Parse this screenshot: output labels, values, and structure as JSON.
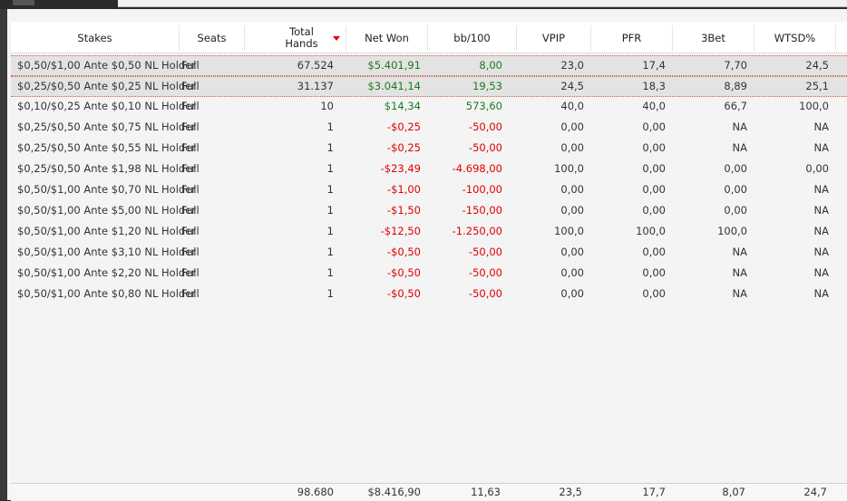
{
  "columns": [
    {
      "key": "stakes",
      "label": "Stakes"
    },
    {
      "key": "seats",
      "label": "Seats"
    },
    {
      "key": "hands",
      "label": "Total Hands",
      "sorted": "desc"
    },
    {
      "key": "net",
      "label": "Net Won"
    },
    {
      "key": "bb100",
      "label": "bb/100"
    },
    {
      "key": "vpip",
      "label": "VPIP"
    },
    {
      "key": "pfr",
      "label": "PFR"
    },
    {
      "key": "threebet",
      "label": "3Bet"
    },
    {
      "key": "wtsd",
      "label": "WTSD%"
    }
  ],
  "rows": [
    {
      "stakes": "$0,50/$1,00 Ante $0,50 NL Holder",
      "seats": "Full",
      "hands": "67.524",
      "net": "$5.401,91",
      "bb100": "8,00",
      "vpip": "23,0",
      "pfr": "17,4",
      "threebet": "7,70",
      "wtsd": "24,5",
      "sign": "pos",
      "selected": true
    },
    {
      "stakes": "$0,25/$0,50 Ante $0,25 NL Holder",
      "seats": "Full",
      "hands": "31.137",
      "net": "$3.041,14",
      "bb100": "19,53",
      "vpip": "24,5",
      "pfr": "18,3",
      "threebet": "8,89",
      "wtsd": "25,1",
      "sign": "pos",
      "selected": true
    },
    {
      "stakes": "$0,10/$0,25 Ante $0,10 NL Holder",
      "seats": "Full",
      "hands": "10",
      "net": "$14,34",
      "bb100": "573,60",
      "vpip": "40,0",
      "pfr": "40,0",
      "threebet": "66,7",
      "wtsd": "100,0",
      "sign": "pos",
      "selected": false
    },
    {
      "stakes": "$0,25/$0,50 Ante $0,75 NL Holder",
      "seats": "Full",
      "hands": "1",
      "net": "-$0,25",
      "bb100": "-50,00",
      "vpip": "0,00",
      "pfr": "0,00",
      "threebet": "NA",
      "wtsd": "NA",
      "sign": "neg",
      "selected": false
    },
    {
      "stakes": "$0,25/$0,50 Ante $0,55 NL Holder",
      "seats": "Full",
      "hands": "1",
      "net": "-$0,25",
      "bb100": "-50,00",
      "vpip": "0,00",
      "pfr": "0,00",
      "threebet": "NA",
      "wtsd": "NA",
      "sign": "neg",
      "selected": false
    },
    {
      "stakes": "$0,25/$0,50 Ante $1,98 NL Holder",
      "seats": "Full",
      "hands": "1",
      "net": "-$23,49",
      "bb100": "-4.698,00",
      "vpip": "100,0",
      "pfr": "0,00",
      "threebet": "0,00",
      "wtsd": "0,00",
      "sign": "neg",
      "selected": false
    },
    {
      "stakes": "$0,50/$1,00 Ante $0,70 NL Holder",
      "seats": "Full",
      "hands": "1",
      "net": "-$1,00",
      "bb100": "-100,00",
      "vpip": "0,00",
      "pfr": "0,00",
      "threebet": "0,00",
      "wtsd": "NA",
      "sign": "neg",
      "selected": false
    },
    {
      "stakes": "$0,50/$1,00 Ante $5,00 NL Holder",
      "seats": "Full",
      "hands": "1",
      "net": "-$1,50",
      "bb100": "-150,00",
      "vpip": "0,00",
      "pfr": "0,00",
      "threebet": "0,00",
      "wtsd": "NA",
      "sign": "neg",
      "selected": false
    },
    {
      "stakes": "$0,50/$1,00 Ante $1,20 NL Holder",
      "seats": "Full",
      "hands": "1",
      "net": "-$12,50",
      "bb100": "-1.250,00",
      "vpip": "100,0",
      "pfr": "100,0",
      "threebet": "100,0",
      "wtsd": "NA",
      "sign": "neg",
      "selected": false
    },
    {
      "stakes": "$0,50/$1,00 Ante $3,10 NL Holder",
      "seats": "Full",
      "hands": "1",
      "net": "-$0,50",
      "bb100": "-50,00",
      "vpip": "0,00",
      "pfr": "0,00",
      "threebet": "NA",
      "wtsd": "NA",
      "sign": "neg",
      "selected": false
    },
    {
      "stakes": "$0,50/$1,00 Ante $2,20 NL Holder",
      "seats": "Full",
      "hands": "1",
      "net": "-$0,50",
      "bb100": "-50,00",
      "vpip": "0,00",
      "pfr": "0,00",
      "threebet": "NA",
      "wtsd": "NA",
      "sign": "neg",
      "selected": false
    },
    {
      "stakes": "$0,50/$1,00 Ante $0,80 NL Holder",
      "seats": "Full",
      "hands": "1",
      "net": "-$0,50",
      "bb100": "-50,00",
      "vpip": "0,00",
      "pfr": "0,00",
      "threebet": "NA",
      "wtsd": "NA",
      "sign": "neg",
      "selected": false
    }
  ],
  "totals": {
    "hands": "98.680",
    "net": "$8.416,90",
    "bb100": "11,63",
    "vpip": "23,5",
    "pfr": "17,7",
    "threebet": "8,07",
    "wtsd": "24,7"
  },
  "colors": {
    "positive": "#1a7a1a",
    "negative": "#e00000",
    "sort_indicator": "#e00000",
    "selection_outline": "#c46a4a"
  }
}
